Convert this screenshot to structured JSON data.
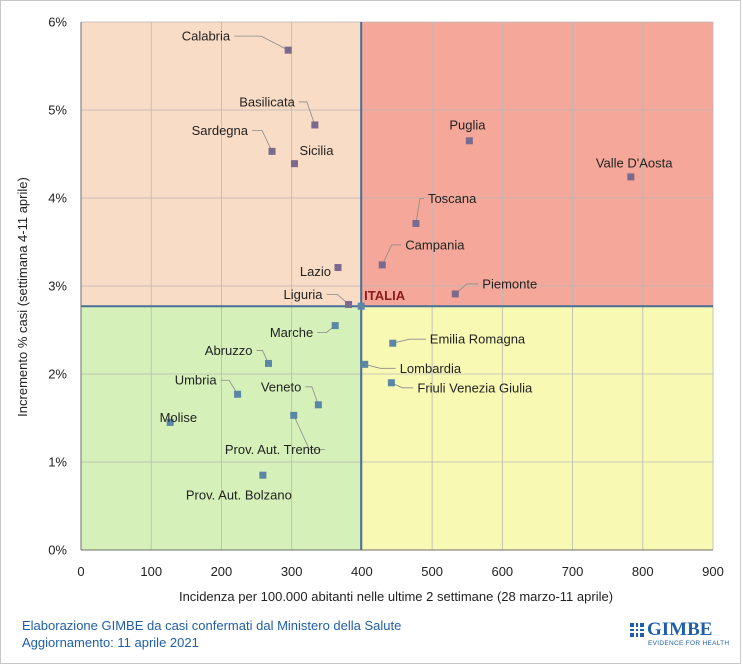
{
  "chart_data": {
    "type": "scatter",
    "xlabel": "Incidenza per 100.000  abitanti nelle ultime 2 settimane (28 marzo-11 aprile)",
    "ylabel": "Incremento % casi (settimana 4-11 aprile)",
    "xlim": [
      0,
      900
    ],
    "ylim": [
      0,
      6
    ],
    "x_ticks": [
      "0",
      "100",
      "200",
      "300",
      "400",
      "500",
      "600",
      "700",
      "800",
      "900"
    ],
    "y_ticks": [
      "0%",
      "1%",
      "2%",
      "3%",
      "4%",
      "5%",
      "6%"
    ],
    "x_tick_values": [
      0,
      100,
      200,
      300,
      400,
      500,
      600,
      700,
      800,
      900
    ],
    "y_tick_values": [
      0,
      1,
      2,
      3,
      4,
      5,
      6
    ],
    "grid": true,
    "reference": {
      "label": "ITALIA",
      "x": 399,
      "y": 2.77
    },
    "quadrant_colors": {
      "top_left": "#f9dcc6",
      "top_right": "#f5a899",
      "bottom_left": "#d5f0b9",
      "bottom_right": "#f8f9b3"
    },
    "point_colors": {
      "upper": "#7a6a8e",
      "lower": "#5b87a6"
    },
    "points": [
      {
        "name": "Calabria",
        "x": 295,
        "y": 5.68
      },
      {
        "name": "Basilicata",
        "x": 333,
        "y": 4.83
      },
      {
        "name": "Sardegna",
        "x": 272,
        "y": 4.53
      },
      {
        "name": "Sicilia",
        "x": 304,
        "y": 4.39
      },
      {
        "name": "Puglia",
        "x": 553,
        "y": 4.65
      },
      {
        "name": "Valle D'Aosta",
        "x": 783,
        "y": 4.24
      },
      {
        "name": "Toscana",
        "x": 477,
        "y": 3.71
      },
      {
        "name": "Campania",
        "x": 429,
        "y": 3.24
      },
      {
        "name": "Lazio",
        "x": 366,
        "y": 3.21
      },
      {
        "name": "Piemonte",
        "x": 533,
        "y": 2.91
      },
      {
        "name": "Liguria",
        "x": 381,
        "y": 2.79
      },
      {
        "name": "Marche",
        "x": 362,
        "y": 2.55
      },
      {
        "name": "Emilia Romagna",
        "x": 444,
        "y": 2.35
      },
      {
        "name": "Abruzzo",
        "x": 267,
        "y": 2.12
      },
      {
        "name": "Lombardia",
        "x": 404,
        "y": 2.11
      },
      {
        "name": "Friuli Venezia Giulia",
        "x": 442,
        "y": 1.9
      },
      {
        "name": "Umbria",
        "x": 223,
        "y": 1.77
      },
      {
        "name": "Veneto",
        "x": 338,
        "y": 1.65
      },
      {
        "name": "Prov. Aut. Trento",
        "x": 303,
        "y": 1.53
      },
      {
        "name": "Molise",
        "x": 127,
        "y": 1.45
      },
      {
        "name": "Prov. Aut. Bolzano",
        "x": 259,
        "y": 0.85
      }
    ]
  },
  "footer": {
    "line1": "Elaborazione GIMBE da casi confermati dal Ministero della Salute",
    "line2": "Aggiornamento: 11 aprile 2021"
  },
  "logo": {
    "name": "GIMBE",
    "tagline": "EVIDENCE FOR HEALTH"
  }
}
